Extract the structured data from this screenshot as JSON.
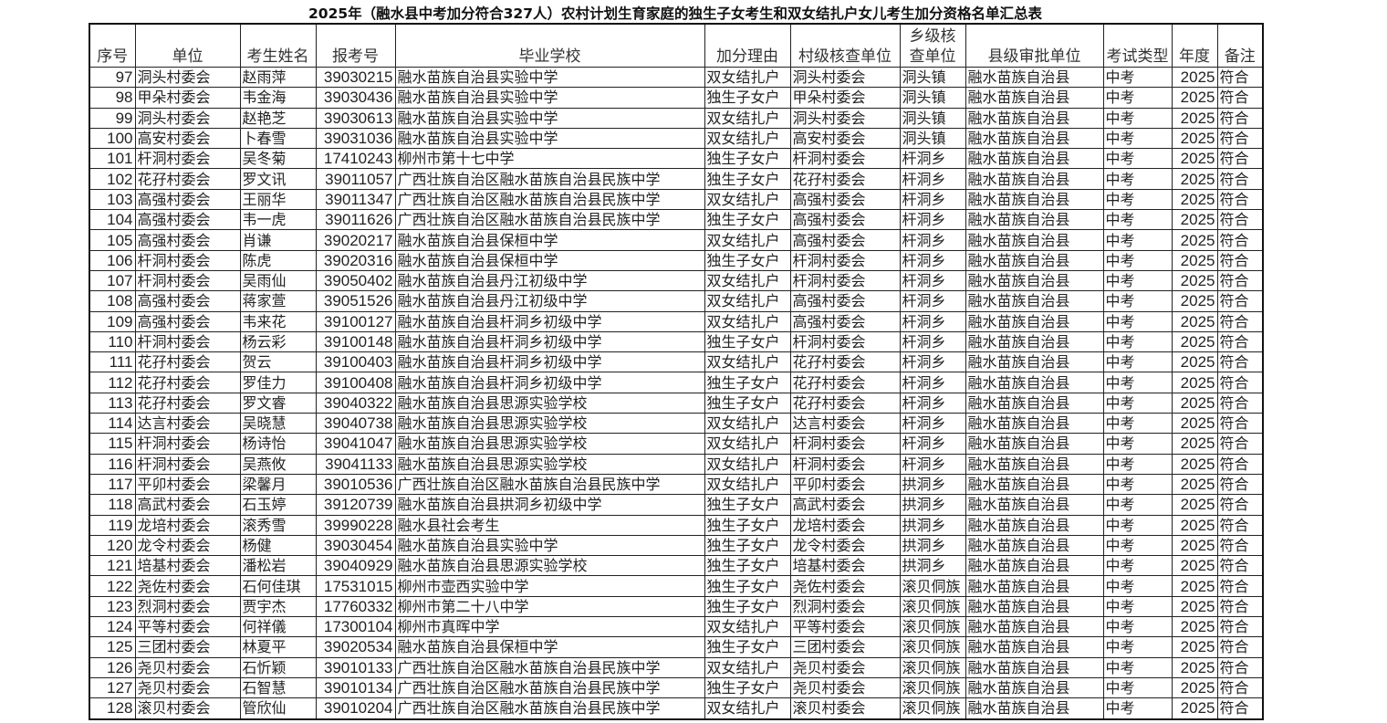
{
  "title": "2025年（融水县中考加分符合327人）农村计划生育家庭的独生子女考生和双女结扎户女儿考生加分资格名单汇总表",
  "headers": [
    "序号",
    "单位",
    "考生姓名",
    "报考号",
    "毕业学校",
    "加分理由",
    "村级核查单位",
    "乡级核查单位",
    "县级审批单位",
    "考试类型",
    "年度",
    "备注"
  ],
  "rows": [
    [
      "97",
      "洞头村委会",
      "赵雨萍",
      "39030215",
      "融水苗族自治县实验中学",
      "双女结扎户",
      "洞头村委会",
      "洞头镇",
      "融水苗族自治县",
      "中考",
      "2025",
      "符合"
    ],
    [
      "98",
      "甲朵村委会",
      "韦金海",
      "39030436",
      "融水苗族自治县实验中学",
      "独生子女户",
      "甲朵村委会",
      "洞头镇",
      "融水苗族自治县",
      "中考",
      "2025",
      "符合"
    ],
    [
      "99",
      "洞头村委会",
      "赵艳芝",
      "39030613",
      "融水苗族自治县实验中学",
      "双女结扎户",
      "洞头村委会",
      "洞头镇",
      "融水苗族自治县",
      "中考",
      "2025",
      "符合"
    ],
    [
      "100",
      "高安村委会",
      "卜春雪",
      "39031036",
      "融水苗族自治县实验中学",
      "双女结扎户",
      "高安村委会",
      "洞头镇",
      "融水苗族自治县",
      "中考",
      "2025",
      "符合"
    ],
    [
      "101",
      "杆洞村委会",
      "吴冬菊",
      "17410243",
      "柳州市第十七中学",
      "独生子女户",
      "杆洞村委会",
      "杆洞乡",
      "融水苗族自治县",
      "中考",
      "2025",
      "符合"
    ],
    [
      "102",
      "花孖村委会",
      "罗文讯",
      "39011057",
      "广西壮族自治区融水苗族自治县民族中学",
      "独生子女户",
      "花孖村委会",
      "杆洞乡",
      "融水苗族自治县",
      "中考",
      "2025",
      "符合"
    ],
    [
      "103",
      "高强村委会",
      "王丽华",
      "39011347",
      "广西壮族自治区融水苗族自治县民族中学",
      "双女结扎户",
      "高强村委会",
      "杆洞乡",
      "融水苗族自治县",
      "中考",
      "2025",
      "符合"
    ],
    [
      "104",
      "高强村委会",
      "韦一虎",
      "39011626",
      "广西壮族自治区融水苗族自治县民族中学",
      "独生子女户",
      "高强村委会",
      "杆洞乡",
      "融水苗族自治县",
      "中考",
      "2025",
      "符合"
    ],
    [
      "105",
      "高强村委会",
      "肖谦",
      "39020217",
      "融水苗族自治县保桓中学",
      "双女结扎户",
      "高强村委会",
      "杆洞乡",
      "融水苗族自治县",
      "中考",
      "2025",
      "符合"
    ],
    [
      "106",
      "杆洞村委会",
      "陈虎",
      "39020316",
      "融水苗族自治县保桓中学",
      "独生子女户",
      "杆洞村委会",
      "杆洞乡",
      "融水苗族自治县",
      "中考",
      "2025",
      "符合"
    ],
    [
      "107",
      "杆洞村委会",
      "吴雨仙",
      "39050402",
      "融水苗族自治县丹江初级中学",
      "双女结扎户",
      "杆洞村委会",
      "杆洞乡",
      "融水苗族自治县",
      "中考",
      "2025",
      "符合"
    ],
    [
      "108",
      "高强村委会",
      "蒋家萱",
      "39051526",
      "融水苗族自治县丹江初级中学",
      "双女结扎户",
      "高强村委会",
      "杆洞乡",
      "融水苗族自治县",
      "中考",
      "2025",
      "符合"
    ],
    [
      "109",
      "高强村委会",
      "韦来花",
      "39100127",
      "融水苗族自治县杆洞乡初级中学",
      "双女结扎户",
      "高强村委会",
      "杆洞乡",
      "融水苗族自治县",
      "中考",
      "2025",
      "符合"
    ],
    [
      "110",
      "杆洞村委会",
      "杨云彩",
      "39100148",
      "融水苗族自治县杆洞乡初级中学",
      "独生子女户",
      "杆洞村委会",
      "杆洞乡",
      "融水苗族自治县",
      "中考",
      "2025",
      "符合"
    ],
    [
      "111",
      "花孖村委会",
      "贺云",
      "39100403",
      "融水苗族自治县杆洞乡初级中学",
      "双女结扎户",
      "花孖村委会",
      "杆洞乡",
      "融水苗族自治县",
      "中考",
      "2025",
      "符合"
    ],
    [
      "112",
      "花孖村委会",
      "罗佳力",
      "39100408",
      "融水苗族自治县杆洞乡初级中学",
      "独生子女户",
      "花孖村委会",
      "杆洞乡",
      "融水苗族自治县",
      "中考",
      "2025",
      "符合"
    ],
    [
      "113",
      "花孖村委会",
      "罗文睿",
      "39040322",
      "融水苗族自治县思源实验学校",
      "独生子女户",
      "花孖村委会",
      "杆洞乡",
      "融水苗族自治县",
      "中考",
      "2025",
      "符合"
    ],
    [
      "114",
      "达言村委会",
      "吴晓慧",
      "39040738",
      "融水苗族自治县思源实验学校",
      "双女结扎户",
      "达言村委会",
      "杆洞乡",
      "融水苗族自治县",
      "中考",
      "2025",
      "符合"
    ],
    [
      "115",
      "杆洞村委会",
      "杨诗怡",
      "39041047",
      "融水苗族自治县思源实验学校",
      "双女结扎户",
      "杆洞村委会",
      "杆洞乡",
      "融水苗族自治县",
      "中考",
      "2025",
      "符合"
    ],
    [
      "116",
      "杆洞村委会",
      "吴燕攸",
      "39041133",
      "融水苗族自治县思源实验学校",
      "双女结扎户",
      "杆洞村委会",
      "杆洞乡",
      "融水苗族自治县",
      "中考",
      "2025",
      "符合"
    ],
    [
      "117",
      "平卯村委会",
      "梁馨月",
      "39010536",
      "广西壮族自治区融水苗族自治县民族中学",
      "双女结扎户",
      "平卯村委会",
      "拱洞乡",
      "融水苗族自治县",
      "中考",
      "2025",
      "符合"
    ],
    [
      "118",
      "高武村委会",
      "石玉婷",
      "39120739",
      "融水苗族自治县拱洞乡初级中学",
      "独生子女户",
      "高武村委会",
      "拱洞乡",
      "融水苗族自治县",
      "中考",
      "2025",
      "符合"
    ],
    [
      "119",
      "龙培村委会",
      "滚秀雪",
      "39990228",
      "融水县社会考生",
      "独生子女户",
      "龙培村委会",
      "拱洞乡",
      "融水苗族自治县",
      "中考",
      "2025",
      "符合"
    ],
    [
      "120",
      "龙令村委会",
      "杨健",
      "39030454",
      "融水苗族自治县实验中学",
      "独生子女户",
      "龙令村委会",
      "拱洞乡",
      "融水苗族自治县",
      "中考",
      "2025",
      "符合"
    ],
    [
      "121",
      "培基村委会",
      "潘松岩",
      "39040929",
      "融水苗族自治县思源实验学校",
      "独生子女户",
      "培基村委会",
      "拱洞乡",
      "融水苗族自治县",
      "中考",
      "2025",
      "符合"
    ],
    [
      "122",
      "尧佐村委会",
      "石何佳琪",
      "17531015",
      "柳州市壶西实验中学",
      "独生子女户",
      "尧佐村委会",
      "滚贝侗族",
      "融水苗族自治县",
      "中考",
      "2025",
      "符合"
    ],
    [
      "123",
      "烈洞村委会",
      "贾宇杰",
      "17760332",
      "柳州市第二十八中学",
      "独生子女户",
      "烈洞村委会",
      "滚贝侗族",
      "融水苗族自治县",
      "中考",
      "2025",
      "符合"
    ],
    [
      "124",
      "平等村委会",
      "何祥儀",
      "17300104",
      "柳州市真晖中学",
      "双女结扎户",
      "平等村委会",
      "滚贝侗族",
      "融水苗族自治县",
      "中考",
      "2025",
      "符合"
    ],
    [
      "125",
      "三团村委会",
      "林夏平",
      "39020534",
      "融水苗族自治县保桓中学",
      "独生子女户",
      "三团村委会",
      "滚贝侗族",
      "融水苗族自治县",
      "中考",
      "2025",
      "符合"
    ],
    [
      "126",
      "尧贝村委会",
      "石忻颖",
      "39010133",
      "广西壮族自治区融水苗族自治县民族中学",
      "双女结扎户",
      "尧贝村委会",
      "滚贝侗族",
      "融水苗族自治县",
      "中考",
      "2025",
      "符合"
    ],
    [
      "127",
      "尧贝村委会",
      "石智慧",
      "39010134",
      "广西壮族自治区融水苗族自治县民族中学",
      "独生子女户",
      "尧贝村委会",
      "滚贝侗族",
      "融水苗族自治县",
      "中考",
      "2025",
      "符合"
    ],
    [
      "128",
      "滚贝村委会",
      "管欣仙",
      "39010204",
      "广西壮族自治区融水苗族自治县民族中学",
      "双女结扎户",
      "滚贝村委会",
      "滚贝侗族",
      "融水苗族自治县",
      "中考",
      "2025",
      "符合"
    ]
  ]
}
